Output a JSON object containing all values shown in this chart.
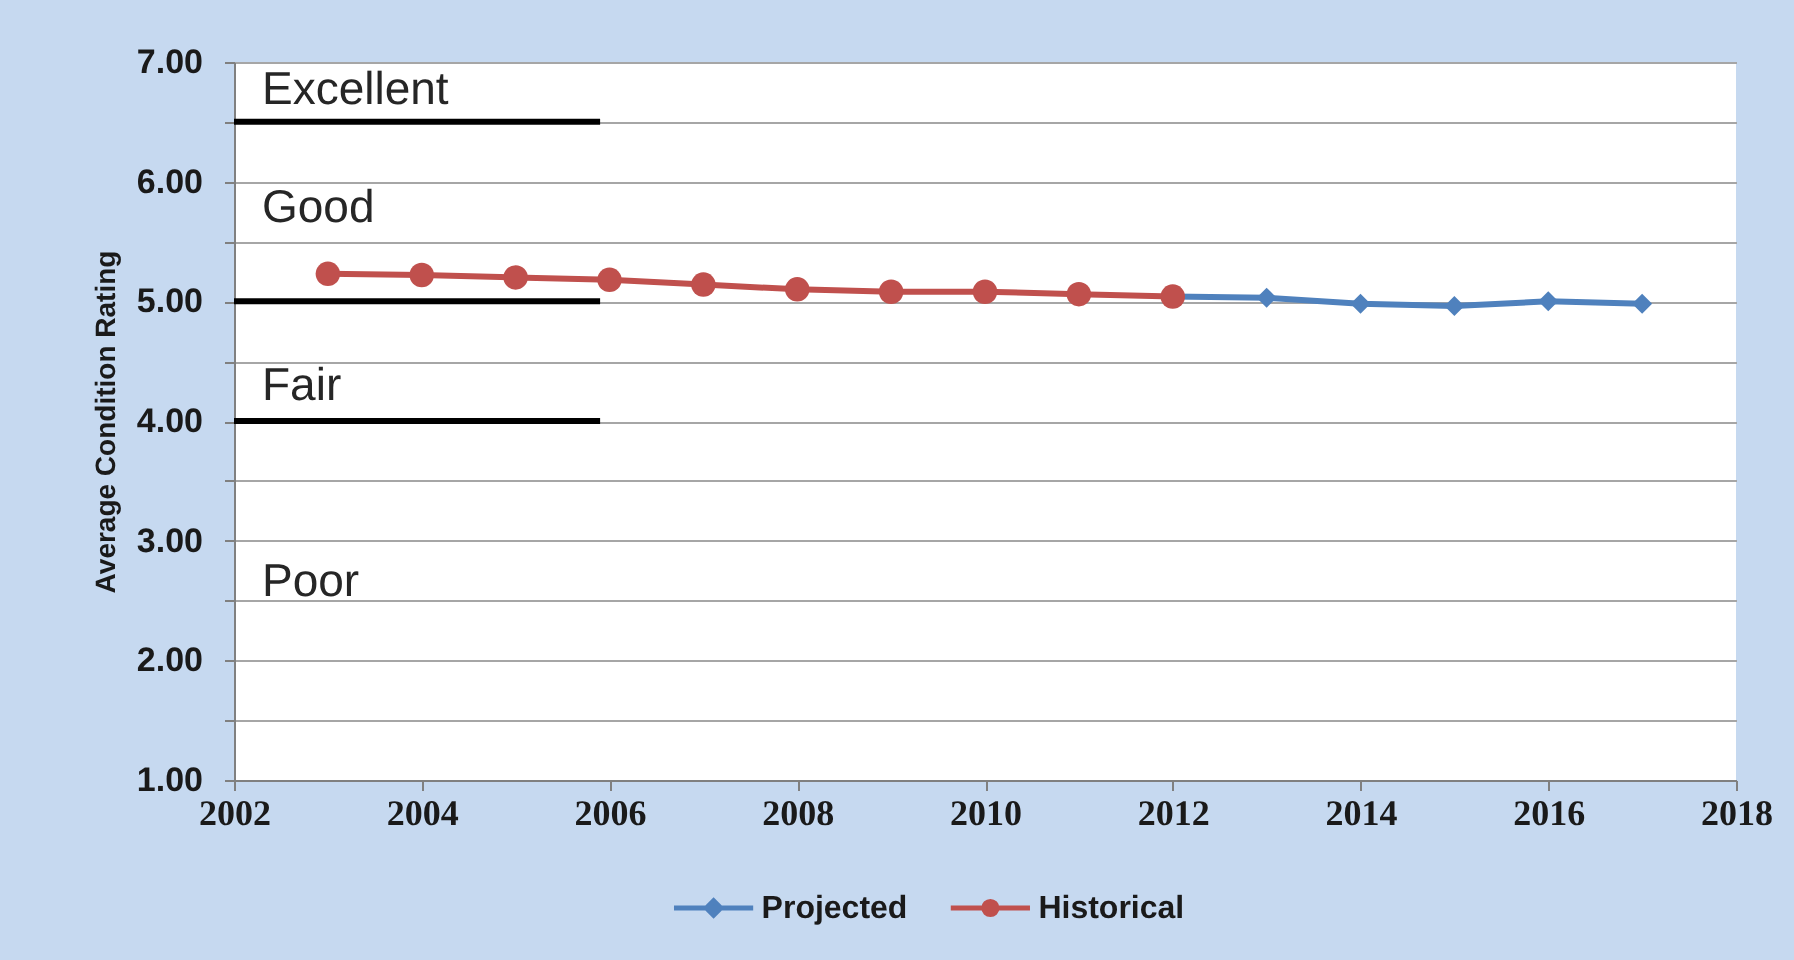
{
  "chart_data": {
    "type": "line",
    "ylabel": "Average Condition Rating",
    "series": [
      {
        "name": "Projected",
        "color": "#4f81bd",
        "marker": "diamond",
        "x": [
          2012,
          2013,
          2014,
          2015,
          2016,
          2017
        ],
        "values": [
          5.04,
          5.03,
          4.98,
          4.96,
          5.0,
          4.98
        ]
      },
      {
        "name": "Historical",
        "color": "#c0504d",
        "marker": "circle",
        "x": [
          2003,
          2004,
          2005,
          2006,
          2007,
          2008,
          2009,
          2010,
          2011,
          2012
        ],
        "values": [
          5.23,
          5.22,
          5.2,
          5.18,
          5.14,
          5.1,
          5.08,
          5.08,
          5.06,
          5.04
        ]
      },
      {
        "color": "#000000",
        "marker": "none",
        "x": [
          2002,
          2005.9
        ],
        "values": [
          6.5,
          6.5
        ]
      },
      {
        "color": "#000000",
        "marker": "none",
        "x": [
          2002,
          2005.9
        ],
        "values": [
          5.0,
          5.0
        ]
      },
      {
        "color": "#000000",
        "marker": "none",
        "x": [
          2002,
          2005.9
        ],
        "values": [
          4.0,
          4.0
        ]
      }
    ],
    "xlim": [
      2002,
      2018
    ],
    "xticks": [
      2002,
      2004,
      2006,
      2008,
      2010,
      2012,
      2014,
      2016,
      2018
    ],
    "ylim": [
      1,
      7
    ],
    "yticks": [
      {
        "value": 1,
        "label": "1.00"
      },
      {
        "value": 1.5,
        "label": null
      },
      {
        "value": 2,
        "label": "2.00"
      },
      {
        "value": 2.5,
        "label": null
      },
      {
        "value": 3,
        "label": "3.00"
      },
      {
        "value": 3.5,
        "label": null
      },
      {
        "value": 4,
        "label": "4.00"
      },
      {
        "value": 4.5,
        "label": null
      },
      {
        "value": 5,
        "label": "5.00"
      },
      {
        "value": 5.5,
        "label": null
      },
      {
        "value": 6,
        "label": "6.00"
      },
      {
        "value": 6.5,
        "label": null
      },
      {
        "value": 7,
        "label": "7.00"
      }
    ],
    "grid": "y",
    "legend": "bottom",
    "annotations": [
      "Excellent",
      "Good",
      "Fair",
      "Poor"
    ]
  }
}
